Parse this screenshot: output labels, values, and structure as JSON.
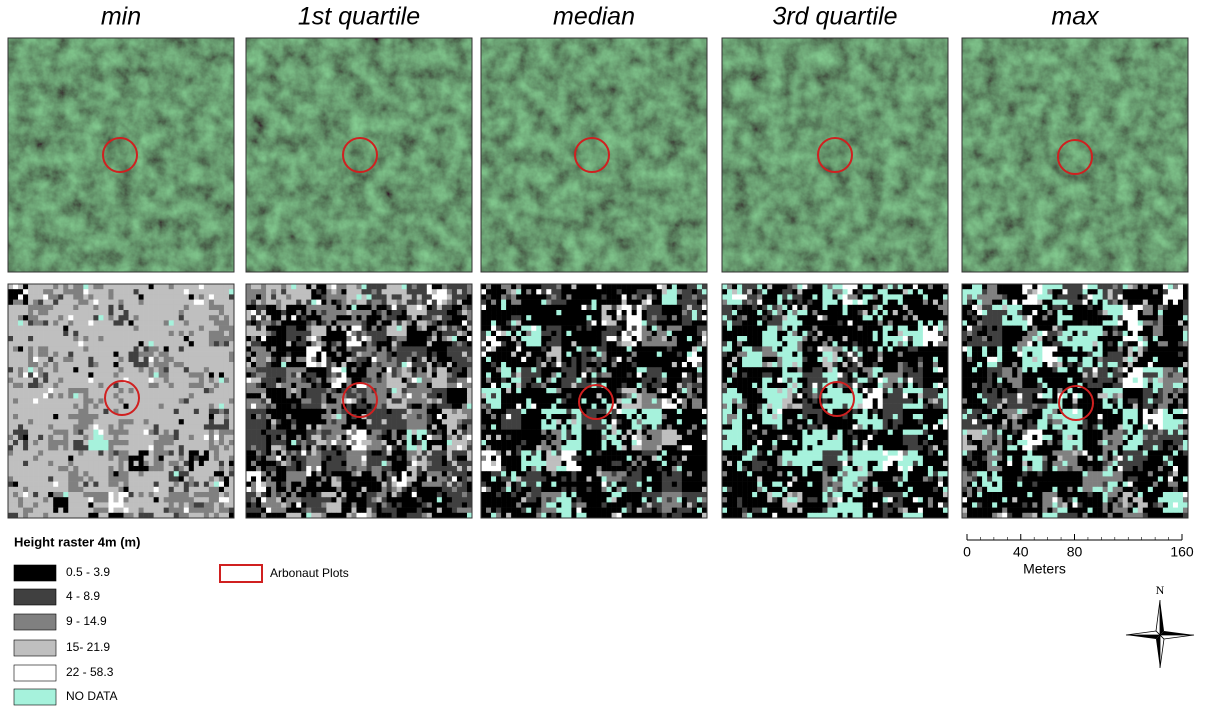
{
  "panels": [
    {
      "title": "min"
    },
    {
      "title": "1st quartile"
    },
    {
      "title": "median"
    },
    {
      "title": "3rd quartile"
    },
    {
      "title": "max"
    }
  ],
  "legend": {
    "title": "Height raster 4m (m)",
    "classes": [
      "0.5 - 3.9",
      "4 - 8.9",
      "9 - 14.9",
      "15- 21.9",
      "22 - 58.3",
      "NO DATA"
    ],
    "plots": "Arbonaut Plots"
  },
  "scale_bar": {
    "ticks": [
      0,
      40,
      80,
      160
    ],
    "unit": "Meters"
  },
  "north": "N"
}
